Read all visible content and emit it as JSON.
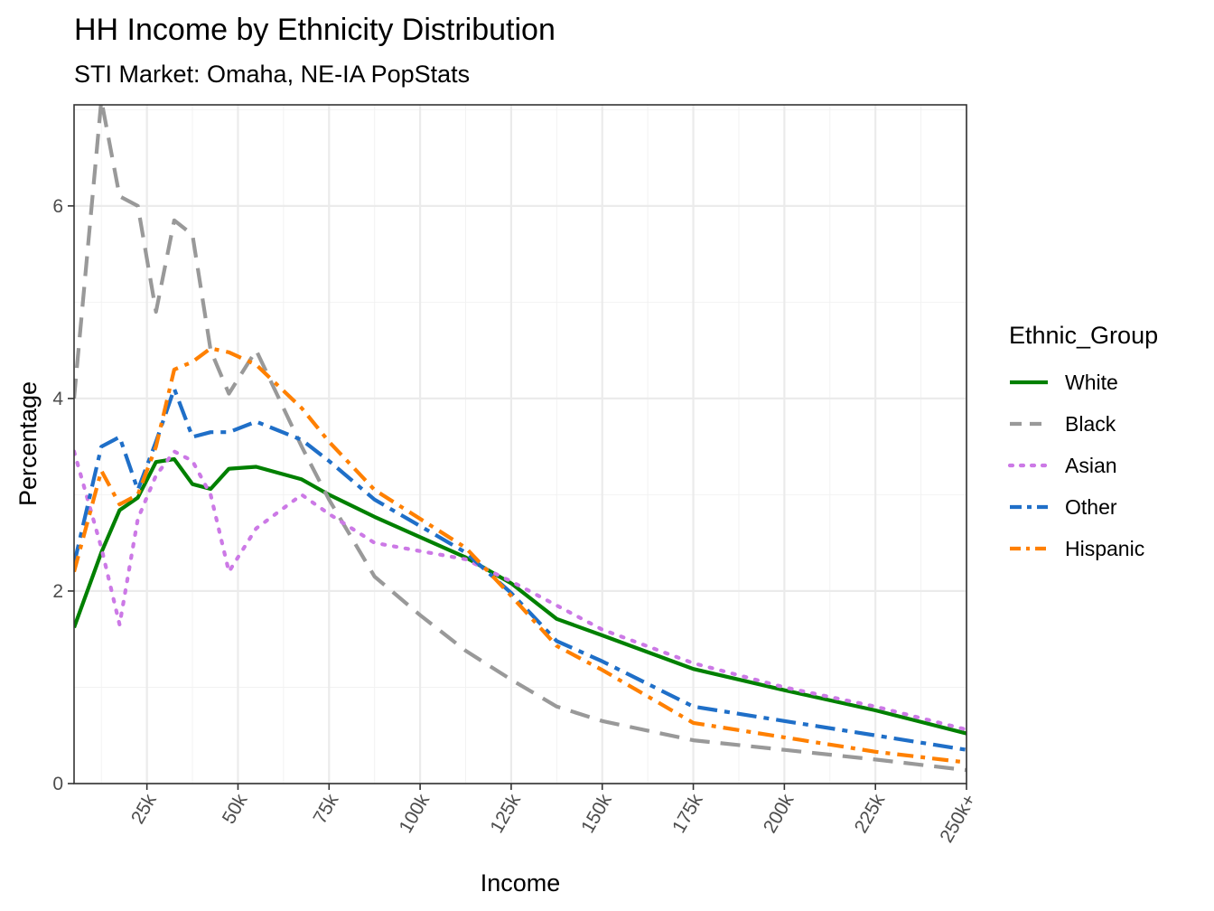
{
  "chart_data": {
    "type": "line",
    "title": "HH Income by Ethnicity Distribution",
    "subtitle": "STI Market: Omaha, NE-IA PopStats",
    "xlabel": "Income",
    "ylabel": "Percentage",
    "xlim": [
      5,
      250
    ],
    "ylim": [
      0,
      7.05
    ],
    "x_ticks": [
      {
        "value": 25,
        "label": "25k"
      },
      {
        "value": 50,
        "label": "50k"
      },
      {
        "value": 75,
        "label": "75k"
      },
      {
        "value": 100,
        "label": "100k"
      },
      {
        "value": 125,
        "label": "125k"
      },
      {
        "value": 150,
        "label": "150k"
      },
      {
        "value": 175,
        "label": "175k"
      },
      {
        "value": 200,
        "label": "200k"
      },
      {
        "value": 225,
        "label": "225k"
      },
      {
        "value": 250,
        "label": "250k+"
      }
    ],
    "y_ticks": [
      {
        "value": 0,
        "label": "0"
      },
      {
        "value": 2,
        "label": "2"
      },
      {
        "value": 4,
        "label": "4"
      },
      {
        "value": 6,
        "label": "6"
      }
    ],
    "grid": true,
    "legend_title": "Ethnic_Group",
    "legend_position": "right",
    "series": [
      {
        "name": "White",
        "color": "#008000",
        "dash": "solid",
        "points": [
          [
            5,
            1.62
          ],
          [
            12.5,
            2.4
          ],
          [
            17.5,
            2.84
          ],
          [
            22.5,
            2.97
          ],
          [
            27.5,
            3.34
          ],
          [
            32.5,
            3.37
          ],
          [
            37.5,
            3.11
          ],
          [
            42.5,
            3.06
          ],
          [
            47.5,
            3.27
          ],
          [
            55,
            3.29
          ],
          [
            67.5,
            3.16
          ],
          [
            75,
            3.0
          ],
          [
            87.5,
            2.77
          ],
          [
            112.5,
            2.35
          ],
          [
            125,
            2.08
          ],
          [
            137.5,
            1.71
          ],
          [
            150,
            1.54
          ],
          [
            175,
            1.19
          ],
          [
            200,
            0.97
          ],
          [
            225,
            0.76
          ],
          [
            250,
            0.52
          ]
        ]
      },
      {
        "name": "Black",
        "color": "#999999",
        "dash": "longdash",
        "points": [
          [
            5,
            4.0
          ],
          [
            12.5,
            7.1
          ],
          [
            17.5,
            6.1
          ],
          [
            22.5,
            6.0
          ],
          [
            27.5,
            4.9
          ],
          [
            32.5,
            5.85
          ],
          [
            37.5,
            5.7
          ],
          [
            42.5,
            4.5
          ],
          [
            47.5,
            4.05
          ],
          [
            55,
            4.5
          ],
          [
            67.5,
            3.5
          ],
          [
            75,
            2.95
          ],
          [
            87.5,
            2.15
          ],
          [
            100,
            1.75
          ],
          [
            112.5,
            1.38
          ],
          [
            125,
            1.08
          ],
          [
            137.5,
            0.8
          ],
          [
            150,
            0.65
          ],
          [
            175,
            0.45
          ],
          [
            200,
            0.35
          ],
          [
            225,
            0.25
          ],
          [
            250,
            0.14
          ]
        ]
      },
      {
        "name": "Asian",
        "color": "#cc79e6",
        "dash": "dotted",
        "points": [
          [
            5,
            3.45
          ],
          [
            12.5,
            2.45
          ],
          [
            17.5,
            1.65
          ],
          [
            22.5,
            2.75
          ],
          [
            27.5,
            3.2
          ],
          [
            32.5,
            3.45
          ],
          [
            37.5,
            3.35
          ],
          [
            42.5,
            3.0
          ],
          [
            47.5,
            2.2
          ],
          [
            55,
            2.65
          ],
          [
            67.5,
            3.0
          ],
          [
            75,
            2.8
          ],
          [
            87.5,
            2.5
          ],
          [
            112.5,
            2.33
          ],
          [
            125,
            2.1
          ],
          [
            137.5,
            1.85
          ],
          [
            150,
            1.6
          ],
          [
            175,
            1.25
          ],
          [
            200,
            1.0
          ],
          [
            225,
            0.8
          ],
          [
            250,
            0.56
          ]
        ]
      },
      {
        "name": "Other",
        "color": "#1f6fc8",
        "dash": "twodash",
        "points": [
          [
            5,
            2.28
          ],
          [
            12.5,
            3.5
          ],
          [
            17.5,
            3.6
          ],
          [
            22.5,
            3.05
          ],
          [
            27.5,
            3.55
          ],
          [
            32.5,
            4.1
          ],
          [
            37.5,
            3.6
          ],
          [
            42.5,
            3.65
          ],
          [
            47.5,
            3.65
          ],
          [
            55,
            3.76
          ],
          [
            67.5,
            3.57
          ],
          [
            75,
            3.35
          ],
          [
            87.5,
            2.95
          ],
          [
            112.5,
            2.4
          ],
          [
            125,
            1.98
          ],
          [
            137.5,
            1.48
          ],
          [
            150,
            1.27
          ],
          [
            175,
            0.8
          ],
          [
            200,
            0.65
          ],
          [
            225,
            0.5
          ],
          [
            250,
            0.35
          ]
        ]
      },
      {
        "name": "Hispanic",
        "color": "#ff8000",
        "dash": "dotdash",
        "points": [
          [
            5,
            2.2
          ],
          [
            12.5,
            3.25
          ],
          [
            17.5,
            2.9
          ],
          [
            22.5,
            3.0
          ],
          [
            27.5,
            3.5
          ],
          [
            32.5,
            4.3
          ],
          [
            37.5,
            4.38
          ],
          [
            42.5,
            4.52
          ],
          [
            47.5,
            4.48
          ],
          [
            55,
            4.35
          ],
          [
            67.5,
            3.9
          ],
          [
            75,
            3.55
          ],
          [
            87.5,
            3.05
          ],
          [
            112.5,
            2.45
          ],
          [
            125,
            1.95
          ],
          [
            137.5,
            1.43
          ],
          [
            150,
            1.18
          ],
          [
            175,
            0.63
          ],
          [
            200,
            0.48
          ],
          [
            225,
            0.33
          ],
          [
            250,
            0.22
          ]
        ]
      }
    ]
  }
}
